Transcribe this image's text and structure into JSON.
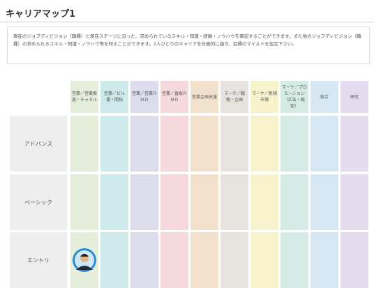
{
  "header": {
    "title": "キャリアマップ1"
  },
  "description": "現在のジョブディビジョン（職種）と現在ステージに沿った、求められているスキル・知識・経験・ノウハウを確認することができます。また他のジョブディビジョン（職種）の求められるスキル・知識・ノウハウ等を知ることができます。1人ひとりのキャリアを計画的に描き、目標のマイルドを設定下さい。",
  "table": {
    "columns": [
      "営業／営業推進・チャネル",
      "営業／ビル運・開拓",
      "営業／営業ＲＭＤ",
      "営業／直販ＲＭＤ",
      "営業企画支援",
      "マーケ／戦略・企画",
      "マーケ／新規市場",
      "マーケ／プロモーション（広告・販促）",
      "総合",
      "研究"
    ],
    "rows": [
      "アドバンス",
      "ベーシック",
      "エントリ"
    ]
  }
}
